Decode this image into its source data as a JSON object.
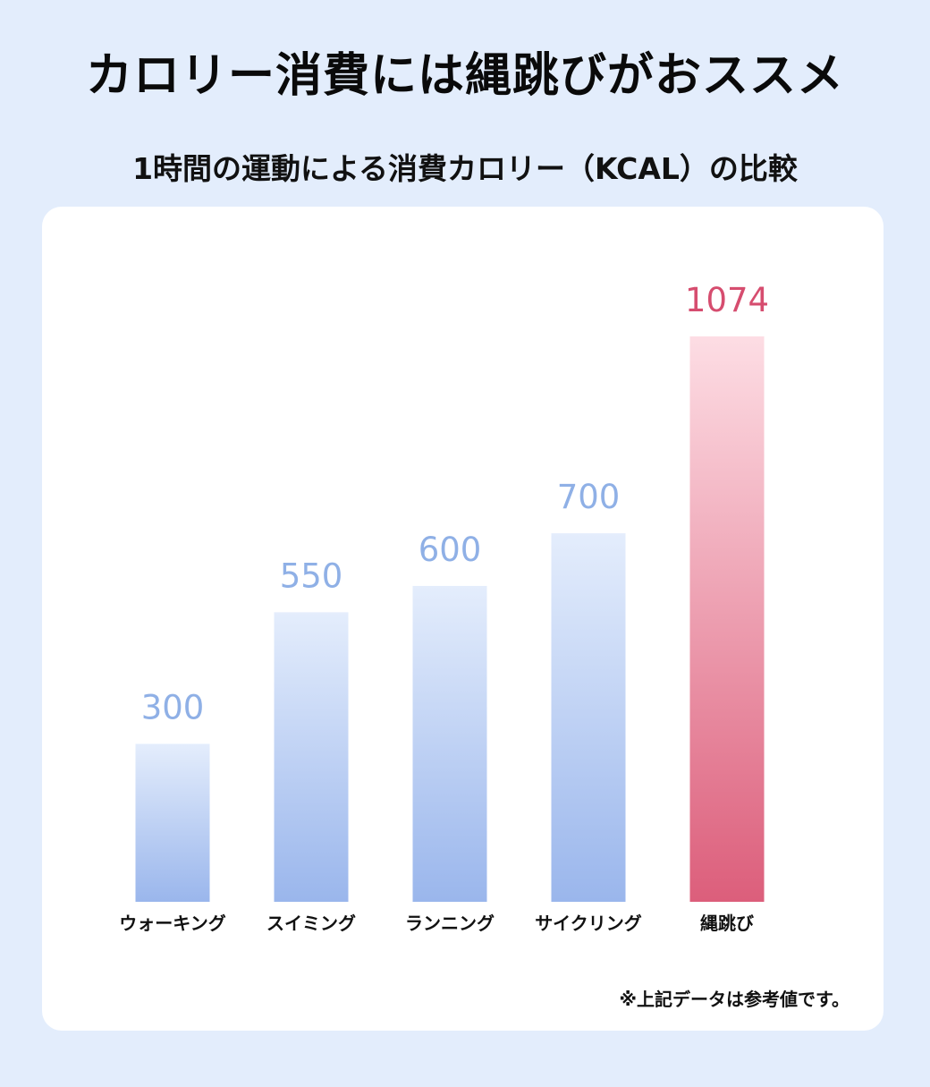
{
  "header": {
    "title": "カロリー消費には縄跳びがおススメ",
    "subtitle": "1時間の運動による消費カロリー（KCAL）の比較"
  },
  "note": "※上記データは参考値です。",
  "colors": {
    "background": "#e3edfc",
    "blue_bar_top": "#e4edfc",
    "blue_bar_bottom": "#9ab6ec",
    "blue_label": "#8fb0e6",
    "red_bar_top": "#fddde4",
    "red_bar_bottom": "#dc5e7b",
    "red_label": "#d64d6f"
  },
  "chart_data": {
    "type": "bar",
    "title": "1時間の運動による消費カロリー（KCAL）の比較",
    "categories": [
      "ウォーキング",
      "スイミング",
      "ランニング",
      "サイクリング",
      "縄跳び"
    ],
    "values": [
      300,
      550,
      600,
      700,
      1074
    ],
    "highlight": [
      "blue",
      "blue",
      "blue",
      "blue",
      "red"
    ],
    "data_labels": [
      "300",
      "550",
      "600",
      "700",
      "1074"
    ],
    "xlabel": "",
    "ylabel": "",
    "ylim": [
      0,
      1074
    ],
    "grid": false,
    "legend": "none"
  }
}
